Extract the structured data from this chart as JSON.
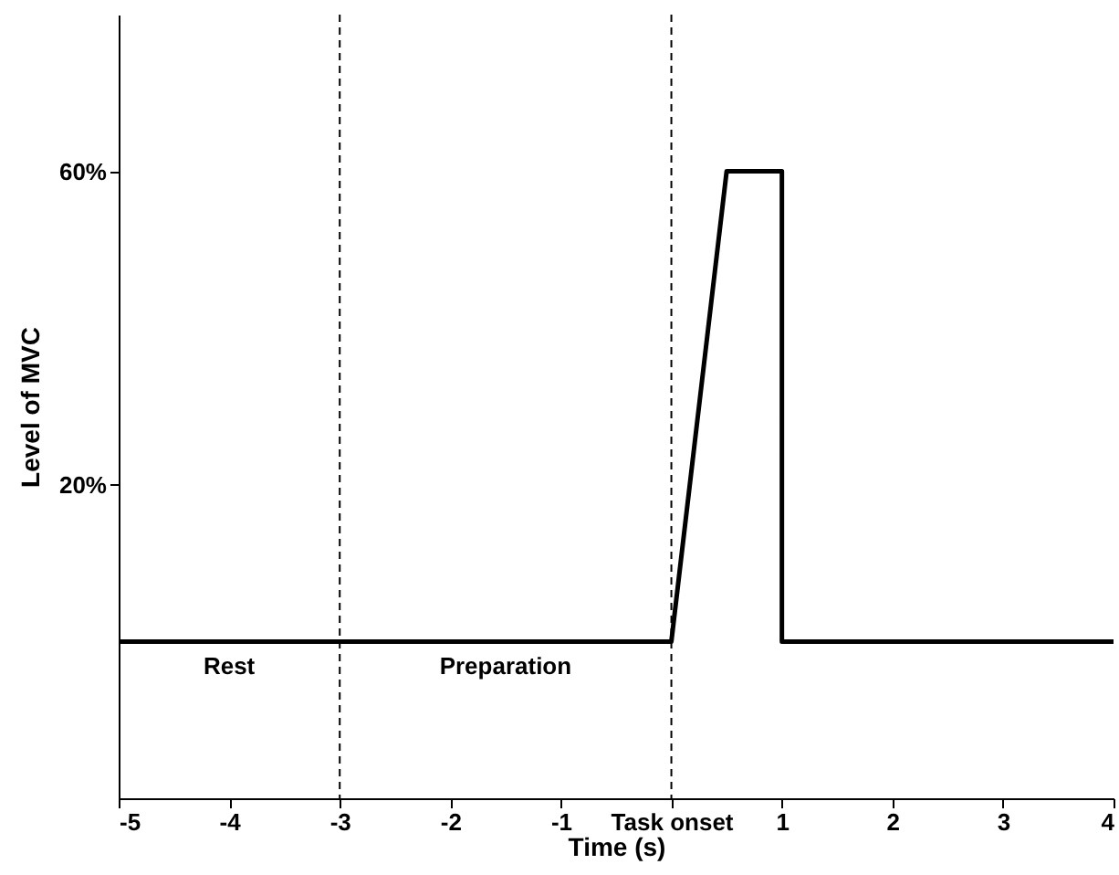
{
  "chart_data": {
    "type": "line",
    "xlabel": "Time (s)",
    "ylabel": "Level of MVC",
    "x": [
      -5,
      0,
      0.5,
      1,
      1,
      4
    ],
    "series": [
      {
        "color": "#000000",
        "values": [
          0,
          0,
          60,
          60,
          0,
          0
        ]
      }
    ],
    "xlim": [
      -5,
      4
    ],
    "xticks": [
      -5,
      -4,
      -3,
      -2,
      -1,
      {
        "value": 0,
        "label": "Task onset"
      },
      1,
      2,
      3,
      4
    ],
    "ylim": [
      -20,
      80
    ],
    "yticks": [
      {
        "value": 20,
        "label": "20%"
      },
      {
        "value": 60,
        "label": "60%"
      }
    ],
    "ref_lines": [
      {
        "axis": "x",
        "value": -3,
        "color": "#000000",
        "line_style": "dashed"
      },
      {
        "axis": "x",
        "value": 0,
        "color": "#000000",
        "line_style": "dashed"
      }
    ],
    "annotations": [
      "Rest",
      "Preparation"
    ],
    "grid": false,
    "legend": false,
    "marker": "none",
    "line_style": "solid"
  }
}
